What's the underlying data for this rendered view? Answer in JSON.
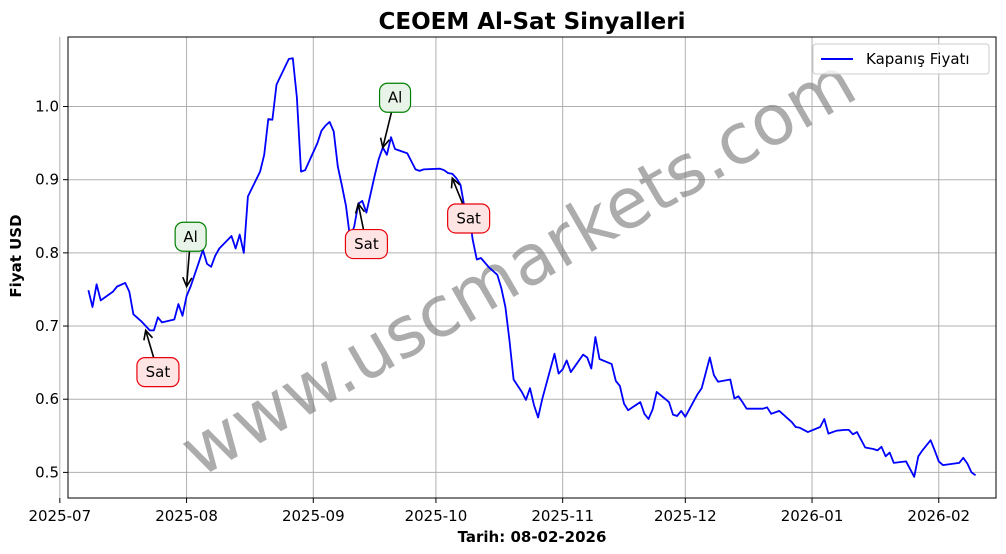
{
  "chart_data": {
    "type": "line",
    "title": "CEOEM Al-Sat Sinyalleri",
    "xlabel": "Tarih: 08-02-2026",
    "ylabel": "Fiyat USD",
    "legend": {
      "placement": "top-right"
    },
    "grid": true,
    "xlim": [
      "2025-07-03",
      "2026-02-15"
    ],
    "ylim": [
      0.465,
      1.095
    ],
    "x_ticks": [
      "2025-07",
      "2025-08",
      "2025-09",
      "2025-10",
      "2025-11",
      "2025-12",
      "2026-01",
      "2026-02"
    ],
    "x_tick_dates": [
      "2025-07-01",
      "2025-08-01",
      "2025-09-01",
      "2025-10-01",
      "2025-11-01",
      "2025-12-01",
      "2026-01-01",
      "2026-02-01"
    ],
    "y_ticks": [
      "0.5",
      "0.6",
      "0.7",
      "0.8",
      "0.9",
      "1.0"
    ],
    "y_tick_values": [
      0.5,
      0.6,
      0.7,
      0.8,
      0.9,
      1.0
    ],
    "series": [
      {
        "name": "Kapanış Fiyatı",
        "color": "#0000ff",
        "points": [
          [
            "2025-07-08",
            0.749
          ],
          [
            "2025-07-09",
            0.726
          ],
          [
            "2025-07-10",
            0.757
          ],
          [
            "2025-07-11",
            0.735
          ],
          [
            "2025-07-14",
            0.747
          ],
          [
            "2025-07-15",
            0.754
          ],
          [
            "2025-07-17",
            0.759
          ],
          [
            "2025-07-18",
            0.747
          ],
          [
            "2025-07-19",
            0.716
          ],
          [
            "2025-07-21",
            0.706
          ],
          [
            "2025-07-23",
            0.694
          ],
          [
            "2025-07-24",
            0.694
          ],
          [
            "2025-07-25",
            0.712
          ],
          [
            "2025-07-26",
            0.705
          ],
          [
            "2025-07-29",
            0.709
          ],
          [
            "2025-07-30",
            0.73
          ],
          [
            "2025-07-31",
            0.714
          ],
          [
            "2025-08-01",
            0.741
          ],
          [
            "2025-08-02",
            0.754
          ],
          [
            "2025-08-04",
            0.787
          ],
          [
            "2025-08-05",
            0.804
          ],
          [
            "2025-08-06",
            0.785
          ],
          [
            "2025-08-07",
            0.781
          ],
          [
            "2025-08-08",
            0.796
          ],
          [
            "2025-08-09",
            0.806
          ],
          [
            "2025-08-12",
            0.823
          ],
          [
            "2025-08-13",
            0.806
          ],
          [
            "2025-08-14",
            0.825
          ],
          [
            "2025-08-15",
            0.8
          ],
          [
            "2025-08-16",
            0.877
          ],
          [
            "2025-08-19",
            0.911
          ],
          [
            "2025-08-20",
            0.934
          ],
          [
            "2025-08-21",
            0.983
          ],
          [
            "2025-08-22",
            0.982
          ],
          [
            "2025-08-23",
            1.03
          ],
          [
            "2025-08-26",
            1.065
          ],
          [
            "2025-08-27",
            1.066
          ],
          [
            "2025-08-28",
            1.012
          ],
          [
            "2025-08-29",
            0.911
          ],
          [
            "2025-08-30",
            0.913
          ],
          [
            "2025-09-02",
            0.95
          ],
          [
            "2025-09-03",
            0.967
          ],
          [
            "2025-09-04",
            0.974
          ],
          [
            "2025-09-05",
            0.979
          ],
          [
            "2025-09-06",
            0.966
          ],
          [
            "2025-09-07",
            0.918
          ],
          [
            "2025-09-08",
            0.892
          ],
          [
            "2025-09-09",
            0.864
          ],
          [
            "2025-09-10",
            0.82
          ],
          [
            "2025-09-11",
            0.836
          ],
          [
            "2025-09-12",
            0.867
          ],
          [
            "2025-09-13",
            0.871
          ],
          [
            "2025-09-14",
            0.855
          ],
          [
            "2025-09-16",
            0.905
          ],
          [
            "2025-09-17",
            0.928
          ],
          [
            "2025-09-18",
            0.944
          ],
          [
            "2025-09-19",
            0.934
          ],
          [
            "2025-09-20",
            0.958
          ],
          [
            "2025-09-21",
            0.942
          ],
          [
            "2025-09-23",
            0.938
          ],
          [
            "2025-09-24",
            0.936
          ],
          [
            "2025-09-26",
            0.914
          ],
          [
            "2025-09-27",
            0.912
          ],
          [
            "2025-09-28",
            0.914
          ],
          [
            "2025-10-02",
            0.915
          ],
          [
            "2025-10-03",
            0.913
          ],
          [
            "2025-10-04",
            0.909
          ],
          [
            "2025-10-05",
            0.908
          ],
          [
            "2025-10-06",
            0.902
          ],
          [
            "2025-10-07",
            0.893
          ],
          [
            "2025-10-08",
            0.862
          ],
          [
            "2025-10-09",
            0.86
          ],
          [
            "2025-10-10",
            0.818
          ],
          [
            "2025-10-11",
            0.791
          ],
          [
            "2025-10-12",
            0.793
          ],
          [
            "2025-10-14",
            0.78
          ],
          [
            "2025-10-16",
            0.77
          ],
          [
            "2025-10-17",
            0.752
          ],
          [
            "2025-10-18",
            0.726
          ],
          [
            "2025-10-19",
            0.68
          ],
          [
            "2025-10-20",
            0.627
          ],
          [
            "2025-10-22",
            0.61
          ],
          [
            "2025-10-23",
            0.599
          ],
          [
            "2025-10-24",
            0.615
          ],
          [
            "2025-10-25",
            0.592
          ],
          [
            "2025-10-26",
            0.575
          ],
          [
            "2025-10-27",
            0.6
          ],
          [
            "2025-10-30",
            0.662
          ],
          [
            "2025-10-31",
            0.635
          ],
          [
            "2025-11-01",
            0.641
          ],
          [
            "2025-11-02",
            0.653
          ],
          [
            "2025-11-03",
            0.637
          ],
          [
            "2025-11-04",
            0.645
          ],
          [
            "2025-11-06",
            0.661
          ],
          [
            "2025-11-07",
            0.657
          ],
          [
            "2025-11-08",
            0.642
          ],
          [
            "2025-11-09",
            0.685
          ],
          [
            "2025-11-10",
            0.655
          ],
          [
            "2025-11-13",
            0.648
          ],
          [
            "2025-11-14",
            0.625
          ],
          [
            "2025-11-15",
            0.618
          ],
          [
            "2025-11-16",
            0.594
          ],
          [
            "2025-11-17",
            0.585
          ],
          [
            "2025-11-20",
            0.596
          ],
          [
            "2025-11-21",
            0.58
          ],
          [
            "2025-11-22",
            0.573
          ],
          [
            "2025-11-23",
            0.586
          ],
          [
            "2025-11-24",
            0.61
          ],
          [
            "2025-11-27",
            0.596
          ],
          [
            "2025-11-28",
            0.579
          ],
          [
            "2025-11-29",
            0.577
          ],
          [
            "2025-11-30",
            0.584
          ],
          [
            "2025-12-01",
            0.576
          ],
          [
            "2025-12-04",
            0.607
          ],
          [
            "2025-12-05",
            0.615
          ],
          [
            "2025-12-07",
            0.657
          ],
          [
            "2025-12-08",
            0.633
          ],
          [
            "2025-12-09",
            0.624
          ],
          [
            "2025-12-12",
            0.627
          ],
          [
            "2025-12-13",
            0.601
          ],
          [
            "2025-12-14",
            0.604
          ],
          [
            "2025-12-15",
            0.596
          ],
          [
            "2025-12-16",
            0.587
          ],
          [
            "2025-12-20",
            0.587
          ],
          [
            "2025-12-21",
            0.589
          ],
          [
            "2025-12-22",
            0.58
          ],
          [
            "2025-12-24",
            0.584
          ],
          [
            "2025-12-27",
            0.569
          ],
          [
            "2025-12-28",
            0.562
          ],
          [
            "2025-12-29",
            0.561
          ],
          [
            "2025-12-31",
            0.555
          ],
          [
            "2026-01-03",
            0.562
          ],
          [
            "2026-01-04",
            0.573
          ],
          [
            "2026-01-05",
            0.553
          ],
          [
            "2026-01-07",
            0.557
          ],
          [
            "2026-01-09",
            0.558
          ],
          [
            "2026-01-10",
            0.558
          ],
          [
            "2026-01-11",
            0.552
          ],
          [
            "2026-01-12",
            0.555
          ],
          [
            "2026-01-14",
            0.534
          ],
          [
            "2026-01-16",
            0.532
          ],
          [
            "2026-01-17",
            0.53
          ],
          [
            "2026-01-18",
            0.535
          ],
          [
            "2026-01-19",
            0.522
          ],
          [
            "2026-01-20",
            0.527
          ],
          [
            "2026-01-21",
            0.513
          ],
          [
            "2026-01-24",
            0.515
          ],
          [
            "2026-01-26",
            0.494
          ],
          [
            "2026-01-27",
            0.522
          ],
          [
            "2026-01-28",
            0.53
          ],
          [
            "2026-01-30",
            0.544
          ],
          [
            "2026-01-31",
            0.53
          ],
          [
            "2026-02-01",
            0.515
          ],
          [
            "2026-02-02",
            0.51
          ],
          [
            "2026-02-06",
            0.513
          ],
          [
            "2026-02-07",
            0.52
          ],
          [
            "2026-02-08",
            0.512
          ],
          [
            "2026-02-09",
            0.5
          ],
          [
            "2026-02-10",
            0.496
          ]
        ]
      }
    ],
    "annotations": [
      {
        "text": "Sat",
        "kind": "sell",
        "point": [
          "2025-07-22",
          0.694
        ],
        "label_at": [
          "2025-07-25",
          0.637
        ]
      },
      {
        "text": "Al",
        "kind": "buy",
        "point": [
          "2025-08-01",
          0.754
        ],
        "label_at": [
          "2025-08-02",
          0.822
        ]
      },
      {
        "text": "Sat",
        "kind": "sell",
        "point": [
          "2025-09-12",
          0.867
        ],
        "label_at": [
          "2025-09-14",
          0.812
        ]
      },
      {
        "text": "Al",
        "kind": "buy",
        "point": [
          "2025-09-18",
          0.944
        ],
        "label_at": [
          "2025-09-21",
          1.012
        ]
      },
      {
        "text": "Sat",
        "kind": "sell",
        "point": [
          "2025-10-05",
          0.902
        ],
        "label_at": [
          "2025-10-09",
          0.847
        ]
      }
    ],
    "watermark": "www.uscmarkets.com",
    "colors": {
      "line": "#0000ff",
      "sell_face": "#ffe4e4",
      "sell_edge": "#e8000b",
      "buy_face": "#e8f4e8",
      "buy_edge": "#008000",
      "grid": "#b0b0b0"
    }
  }
}
